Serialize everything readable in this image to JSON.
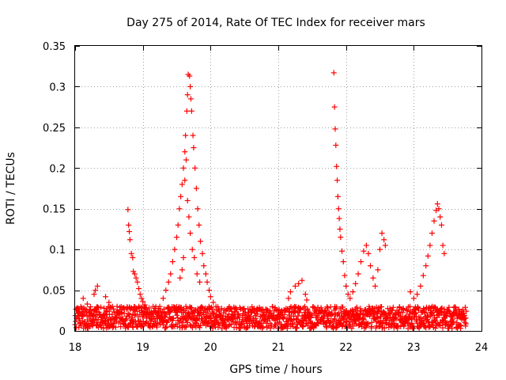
{
  "chart_data": {
    "type": "scatter",
    "title": "Day 275 of 2014, Rate Of TEC Index for receiver mars",
    "xlabel": "GPS time / hours",
    "ylabel": "ROTI / TECUs",
    "xlim": [
      18,
      24
    ],
    "ylim": [
      0,
      0.35
    ],
    "xticks": [
      18,
      19,
      20,
      21,
      22,
      23,
      24
    ],
    "yticks": [
      0,
      0.05,
      0.1,
      0.15,
      0.2,
      0.25,
      0.3,
      0.35
    ],
    "xtick_labels": [
      "18",
      "19",
      "20",
      "21",
      "22",
      "23",
      "24"
    ],
    "ytick_labels": [
      "0",
      "0.05",
      "0.1",
      "0.15",
      "0.2",
      "0.25",
      "0.3",
      "0.35"
    ],
    "grid": true,
    "marker": "+",
    "color": "#ff0000",
    "series": [
      {
        "name": "ROTI",
        "baseline": {
          "x_range": [
            18.0,
            23.78
          ],
          "y_range": [
            0.003,
            0.03
          ],
          "step": 0.004
        },
        "points": [
          {
            "x": 18.12,
            "y": 0.04
          },
          {
            "x": 18.18,
            "y": 0.033
          },
          {
            "x": 18.3,
            "y": 0.05
          },
          {
            "x": 18.33,
            "y": 0.055
          },
          {
            "x": 18.28,
            "y": 0.045
          },
          {
            "x": 18.45,
            "y": 0.042
          },
          {
            "x": 18.5,
            "y": 0.035
          },
          {
            "x": 18.62,
            "y": 0.03
          },
          {
            "x": 18.78,
            "y": 0.149
          },
          {
            "x": 18.79,
            "y": 0.13
          },
          {
            "x": 18.8,
            "y": 0.122
          },
          {
            "x": 18.81,
            "y": 0.112
          },
          {
            "x": 18.83,
            "y": 0.095
          },
          {
            "x": 18.85,
            "y": 0.09
          },
          {
            "x": 18.86,
            "y": 0.073
          },
          {
            "x": 18.88,
            "y": 0.07
          },
          {
            "x": 18.9,
            "y": 0.065
          },
          {
            "x": 18.92,
            "y": 0.06
          },
          {
            "x": 18.94,
            "y": 0.052
          },
          {
            "x": 18.96,
            "y": 0.045
          },
          {
            "x": 18.98,
            "y": 0.04
          },
          {
            "x": 19.0,
            "y": 0.036
          },
          {
            "x": 19.03,
            "y": 0.032
          },
          {
            "x": 19.05,
            "y": 0.028
          },
          {
            "x": 19.25,
            "y": 0.03
          },
          {
            "x": 19.3,
            "y": 0.04
          },
          {
            "x": 19.34,
            "y": 0.05
          },
          {
            "x": 19.38,
            "y": 0.06
          },
          {
            "x": 19.41,
            "y": 0.07
          },
          {
            "x": 19.44,
            "y": 0.085
          },
          {
            "x": 19.47,
            "y": 0.1
          },
          {
            "x": 19.5,
            "y": 0.115
          },
          {
            "x": 19.52,
            "y": 0.13
          },
          {
            "x": 19.54,
            "y": 0.15
          },
          {
            "x": 19.56,
            "y": 0.165
          },
          {
            "x": 19.58,
            "y": 0.18
          },
          {
            "x": 19.6,
            "y": 0.2
          },
          {
            "x": 19.62,
            "y": 0.22
          },
          {
            "x": 19.63,
            "y": 0.24
          },
          {
            "x": 19.65,
            "y": 0.27
          },
          {
            "x": 19.66,
            "y": 0.29
          },
          {
            "x": 19.67,
            "y": 0.315
          },
          {
            "x": 19.69,
            "y": 0.313
          },
          {
            "x": 19.7,
            "y": 0.3
          },
          {
            "x": 19.71,
            "y": 0.285
          },
          {
            "x": 19.72,
            "y": 0.27
          },
          {
            "x": 19.74,
            "y": 0.24
          },
          {
            "x": 19.75,
            "y": 0.225
          },
          {
            "x": 19.77,
            "y": 0.2
          },
          {
            "x": 19.79,
            "y": 0.175
          },
          {
            "x": 19.81,
            "y": 0.15
          },
          {
            "x": 19.83,
            "y": 0.13
          },
          {
            "x": 19.85,
            "y": 0.11
          },
          {
            "x": 19.88,
            "y": 0.095
          },
          {
            "x": 19.9,
            "y": 0.08
          },
          {
            "x": 19.93,
            "y": 0.07
          },
          {
            "x": 19.95,
            "y": 0.06
          },
          {
            "x": 19.98,
            "y": 0.05
          },
          {
            "x": 20.0,
            "y": 0.042
          },
          {
            "x": 20.04,
            "y": 0.035
          },
          {
            "x": 20.08,
            "y": 0.03
          },
          {
            "x": 19.62,
            "y": 0.185
          },
          {
            "x": 19.64,
            "y": 0.21
          },
          {
            "x": 19.66,
            "y": 0.16
          },
          {
            "x": 19.68,
            "y": 0.14
          },
          {
            "x": 19.7,
            "y": 0.12
          },
          {
            "x": 19.73,
            "y": 0.1
          },
          {
            "x": 19.6,
            "y": 0.09
          },
          {
            "x": 19.58,
            "y": 0.075
          },
          {
            "x": 19.55,
            "y": 0.065
          },
          {
            "x": 19.76,
            "y": 0.09
          },
          {
            "x": 19.8,
            "y": 0.07
          },
          {
            "x": 19.84,
            "y": 0.06
          },
          {
            "x": 21.15,
            "y": 0.04
          },
          {
            "x": 21.18,
            "y": 0.048
          },
          {
            "x": 21.25,
            "y": 0.055
          },
          {
            "x": 21.3,
            "y": 0.058
          },
          {
            "x": 21.35,
            "y": 0.062
          },
          {
            "x": 21.4,
            "y": 0.045
          },
          {
            "x": 21.42,
            "y": 0.038
          },
          {
            "x": 21.82,
            "y": 0.317
          },
          {
            "x": 21.83,
            "y": 0.275
          },
          {
            "x": 21.84,
            "y": 0.248
          },
          {
            "x": 21.85,
            "y": 0.228
          },
          {
            "x": 21.86,
            "y": 0.202
          },
          {
            "x": 21.87,
            "y": 0.185
          },
          {
            "x": 21.88,
            "y": 0.165
          },
          {
            "x": 21.89,
            "y": 0.15
          },
          {
            "x": 21.9,
            "y": 0.138
          },
          {
            "x": 21.91,
            "y": 0.125
          },
          {
            "x": 21.92,
            "y": 0.115
          },
          {
            "x": 21.94,
            "y": 0.098
          },
          {
            "x": 21.96,
            "y": 0.085
          },
          {
            "x": 21.98,
            "y": 0.068
          },
          {
            "x": 22.0,
            "y": 0.055
          },
          {
            "x": 22.03,
            "y": 0.045
          },
          {
            "x": 22.06,
            "y": 0.04
          },
          {
            "x": 22.1,
            "y": 0.048
          },
          {
            "x": 22.14,
            "y": 0.058
          },
          {
            "x": 22.18,
            "y": 0.07
          },
          {
            "x": 22.22,
            "y": 0.085
          },
          {
            "x": 22.26,
            "y": 0.098
          },
          {
            "x": 22.3,
            "y": 0.105
          },
          {
            "x": 22.33,
            "y": 0.095
          },
          {
            "x": 22.36,
            "y": 0.08
          },
          {
            "x": 22.4,
            "y": 0.065
          },
          {
            "x": 22.43,
            "y": 0.055
          },
          {
            "x": 22.47,
            "y": 0.075
          },
          {
            "x": 22.5,
            "y": 0.1
          },
          {
            "x": 22.53,
            "y": 0.12
          },
          {
            "x": 22.56,
            "y": 0.112
          },
          {
            "x": 22.58,
            "y": 0.105
          },
          {
            "x": 22.95,
            "y": 0.048
          },
          {
            "x": 23.0,
            "y": 0.04
          },
          {
            "x": 23.05,
            "y": 0.045
          },
          {
            "x": 23.1,
            "y": 0.055
          },
          {
            "x": 23.14,
            "y": 0.068
          },
          {
            "x": 23.18,
            "y": 0.08
          },
          {
            "x": 23.21,
            "y": 0.092
          },
          {
            "x": 23.24,
            "y": 0.105
          },
          {
            "x": 23.27,
            "y": 0.12
          },
          {
            "x": 23.3,
            "y": 0.135
          },
          {
            "x": 23.33,
            "y": 0.148
          },
          {
            "x": 23.35,
            "y": 0.156
          },
          {
            "x": 23.37,
            "y": 0.15
          },
          {
            "x": 23.39,
            "y": 0.14
          },
          {
            "x": 23.41,
            "y": 0.13
          },
          {
            "x": 23.43,
            "y": 0.105
          },
          {
            "x": 23.45,
            "y": 0.095
          }
        ]
      }
    ]
  }
}
